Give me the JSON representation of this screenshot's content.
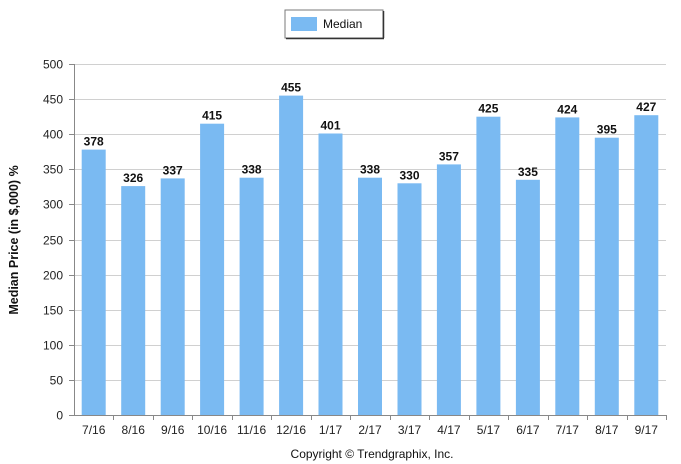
{
  "colors": {
    "bar": "#7ABAF2",
    "grid": "#D0D0D0",
    "axis": "#888888"
  },
  "footer": {
    "copyright": "Copyright © Trendgraphix, Inc."
  },
  "chart_data": {
    "type": "bar",
    "title": "",
    "xlabel": "",
    "ylabel": "Median Price (in $,000) %",
    "ylim": [
      0,
      500
    ],
    "yticks": [
      0,
      50,
      100,
      150,
      200,
      250,
      300,
      350,
      400,
      450,
      500
    ],
    "grid": true,
    "legend_position": "top-center",
    "categories": [
      "7/16",
      "8/16",
      "9/16",
      "10/16",
      "11/16",
      "12/16",
      "1/17",
      "2/17",
      "3/17",
      "4/17",
      "5/17",
      "6/17",
      "7/17",
      "8/17",
      "9/17"
    ],
    "series": [
      {
        "name": "Median",
        "values": [
          378,
          326,
          337,
          415,
          338,
          455,
          401,
          338,
          330,
          357,
          425,
          335,
          424,
          395,
          427
        ]
      }
    ]
  }
}
